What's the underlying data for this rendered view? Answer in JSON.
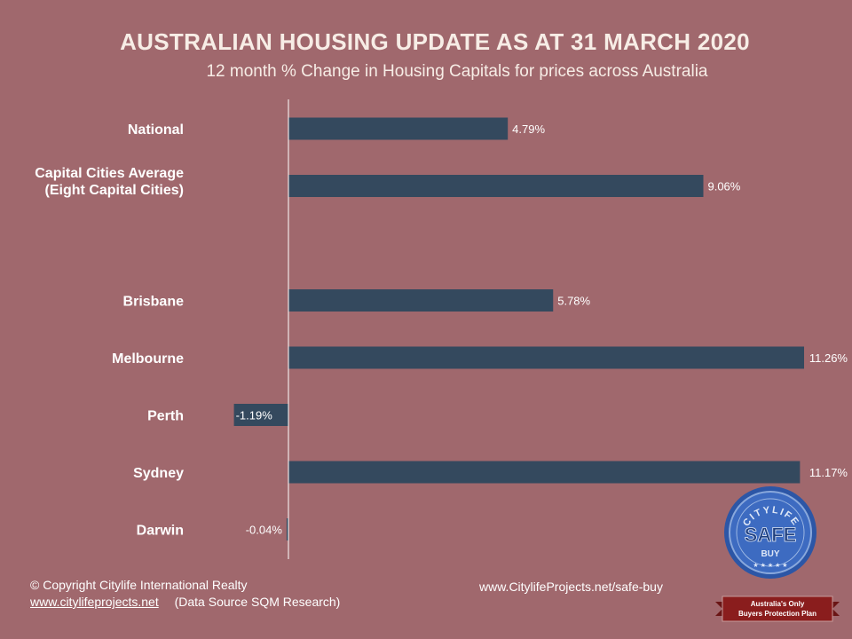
{
  "header": {
    "title": "AUSTRALIAN  HOUSING UPDATE AS AT 31 MARCH 2020",
    "subtitle": "12 month % Change in Housing Capitals for prices across Australia"
  },
  "chart_data": {
    "type": "bar",
    "orientation": "horizontal",
    "categories": [
      [
        "National"
      ],
      [
        "Capital Cities Average",
        "(Eight Capital Cities)"
      ],
      [
        ""
      ],
      [
        "Brisbane"
      ],
      [
        "Melbourne"
      ],
      [
        "Perth"
      ],
      [
        "Sydney"
      ],
      [
        "Darwin"
      ]
    ],
    "values": [
      4.79,
      9.06,
      null,
      5.78,
      11.26,
      -1.19,
      11.17,
      -0.04
    ],
    "value_labels": [
      "4.79%",
      "9.06%",
      "",
      "5.78%",
      "11.26%",
      "-1.19%",
      "11.17%",
      "-0.04%"
    ],
    "xlim": [
      -1.2,
      11.3
    ],
    "bar_color": "#34495e",
    "grid": false
  },
  "footer": {
    "copyright": "© Copyright Citylife International  Realty",
    "website": "www.citylifeprojects.net",
    "source": "(Data Source SQM Research)",
    "link": "www.CitylifeProjects.net/safe-buy"
  },
  "seal": {
    "top_text": "CITYLIFE",
    "main_text": "SAFE",
    "sub_text": "BUY",
    "ribbon_line1": "Australia's Only",
    "ribbon_line2": "Buyers Protection Plan",
    "colors": {
      "blue": "#2f58a8",
      "ribbon": "#8a1d1d"
    }
  }
}
